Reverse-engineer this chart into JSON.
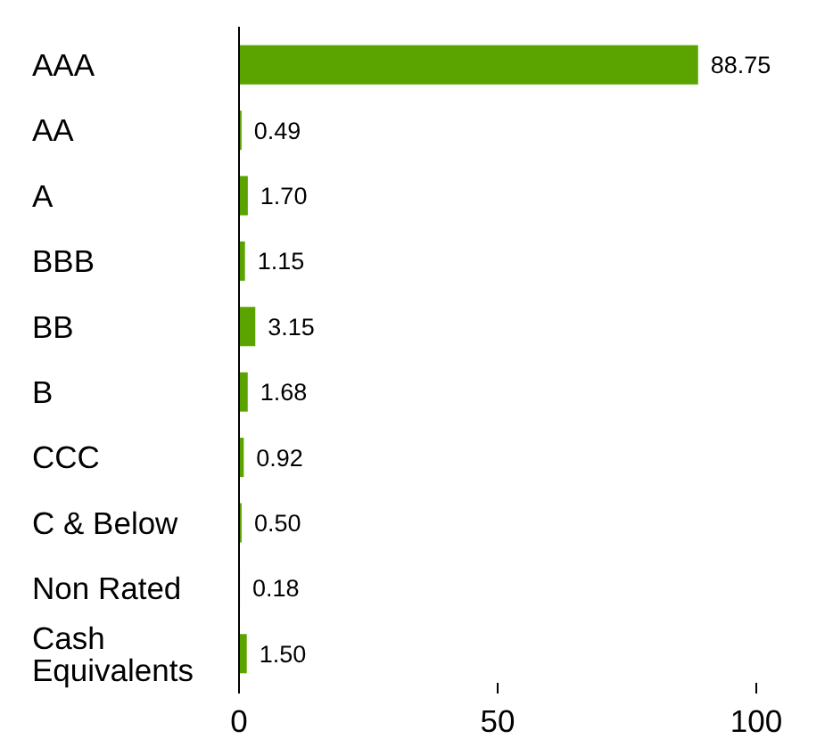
{
  "chart_data": {
    "type": "bar",
    "orientation": "horizontal",
    "categories": [
      "AAA",
      "AA",
      "A",
      "BBB",
      "BB",
      "B",
      "CCC",
      "C & Below",
      "Non Rated",
      "Cash Equivalents"
    ],
    "values": [
      88.75,
      0.49,
      1.7,
      1.15,
      3.15,
      1.68,
      0.92,
      0.5,
      0.18,
      1.5
    ],
    "value_labels": [
      "88.75",
      "0.49",
      "1.70",
      "1.15",
      "3.15",
      "1.68",
      "0.92",
      "0.50",
      "0.18",
      "1.50"
    ],
    "color": "#5ba400",
    "xlim": [
      0,
      100
    ],
    "xticks": [
      0,
      50,
      100
    ]
  }
}
